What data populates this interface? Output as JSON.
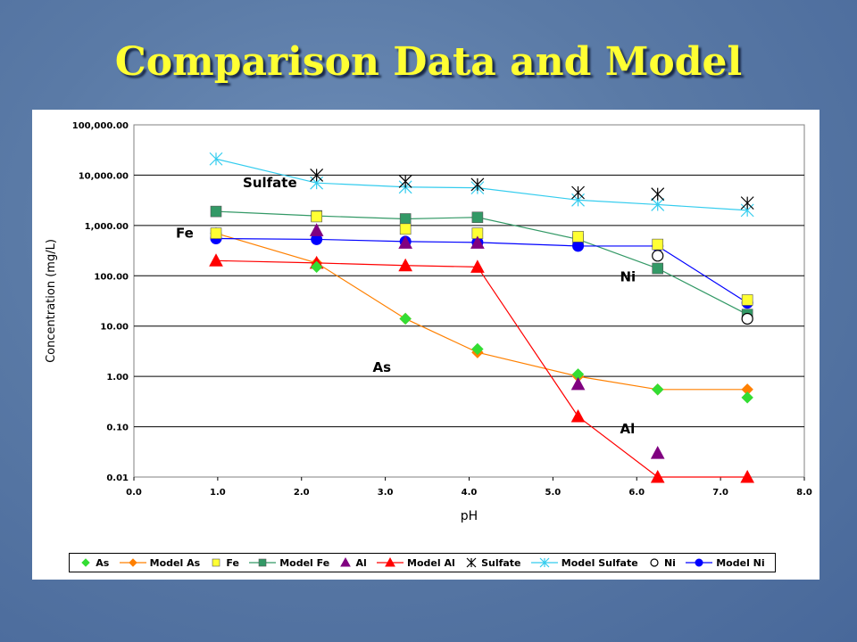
{
  "slide": {
    "title": "Comparison Data and Model"
  },
  "chart_data": {
    "type": "line",
    "title": "",
    "xlabel": "pH",
    "ylabel": "Concentration (mg/L)",
    "xlim": [
      0,
      8
    ],
    "ylim": [
      0.01,
      100000
    ],
    "yscale": "log",
    "grid": "horizontal",
    "legend_position": "bottom",
    "x_ticks": [
      "0.0",
      "1.0",
      "2.0",
      "3.0",
      "4.0",
      "5.0",
      "6.0",
      "7.0",
      "8.0"
    ],
    "y_ticks": [
      "0.01",
      "0.10",
      "1.00",
      "10.00",
      "100.00",
      "1,000.00",
      "10,000.00",
      "100,000.00"
    ],
    "series": [
      {
        "name": "As",
        "kind": "points",
        "marker": "diamond",
        "color": "#33dd33",
        "x": [
          0.98,
          2.18,
          3.24,
          4.1,
          5.3,
          6.25,
          7.32
        ],
        "y": [
          700,
          150,
          14,
          3.5,
          1.1,
          0.55,
          0.38
        ]
      },
      {
        "name": "Model As",
        "kind": "line",
        "marker": "diamond",
        "color": "#ff8000",
        "x": [
          0.98,
          2.18,
          3.24,
          4.1,
          5.3,
          6.25,
          7.32
        ],
        "y": [
          700,
          180,
          14,
          3.0,
          1.0,
          0.55,
          0.55
        ]
      },
      {
        "name": "Fe",
        "kind": "points",
        "marker": "square",
        "color": "#ffff33",
        "x": [
          0.98,
          2.18,
          3.24,
          4.1,
          5.3,
          6.25,
          7.32
        ],
        "y": [
          700,
          1500,
          850,
          700,
          600,
          420,
          33
        ]
      },
      {
        "name": "Model Fe",
        "kind": "line",
        "marker": "square",
        "color": "#339966",
        "x": [
          0.98,
          2.18,
          3.24,
          4.1,
          5.3,
          6.25,
          7.32
        ],
        "y": [
          1900,
          1550,
          1350,
          1450,
          530,
          140,
          17
        ]
      },
      {
        "name": "Al",
        "kind": "points",
        "marker": "triangle",
        "color": "#800080",
        "x": [
          2.18,
          3.24,
          4.1,
          5.3,
          6.25
        ],
        "y": [
          800,
          450,
          450,
          0.7,
          0.03
        ]
      },
      {
        "name": "Model Al",
        "kind": "line",
        "marker": "triangle",
        "color": "#ff0000",
        "x": [
          0.98,
          2.18,
          3.24,
          4.1,
          5.3,
          6.25,
          7.32
        ],
        "y": [
          200,
          180,
          160,
          150,
          0.16,
          0.01,
          0.01
        ]
      },
      {
        "name": "Sulfate",
        "kind": "points",
        "marker": "star",
        "color": "#000000",
        "x": [
          2.18,
          3.24,
          4.1,
          5.3,
          6.25,
          7.32
        ],
        "y": [
          10000,
          7500,
          6500,
          4500,
          4200,
          2800
        ]
      },
      {
        "name": "Model Sulfate",
        "kind": "line",
        "marker": "star",
        "color": "#33ccee",
        "x": [
          0.98,
          2.18,
          3.24,
          4.1,
          5.3,
          6.25,
          7.32
        ],
        "y": [
          21000,
          7000,
          5800,
          5600,
          3200,
          2600,
          2000
        ]
      },
      {
        "name": "Ni",
        "kind": "points",
        "marker": "open-circle",
        "color": "#000000",
        "x": [
          6.25,
          7.32
        ],
        "y": [
          250,
          14
        ]
      },
      {
        "name": "Model Ni",
        "kind": "line",
        "marker": "circle",
        "color": "#0000ff",
        "x": [
          0.98,
          2.18,
          3.24,
          4.1,
          5.3,
          6.25,
          7.32
        ],
        "y": [
          550,
          530,
          480,
          460,
          390,
          390,
          29
        ]
      }
    ],
    "annotations": [
      {
        "text": "Sulfate",
        "x": 1.3,
        "y": 7000
      },
      {
        "text": "Fe",
        "x": 0.5,
        "y": 700
      },
      {
        "text": "Ni",
        "x": 5.8,
        "y": 95
      },
      {
        "text": "As",
        "x": 2.85,
        "y": 1.5
      },
      {
        "text": "Al",
        "x": 5.8,
        "y": 0.09
      }
    ]
  }
}
